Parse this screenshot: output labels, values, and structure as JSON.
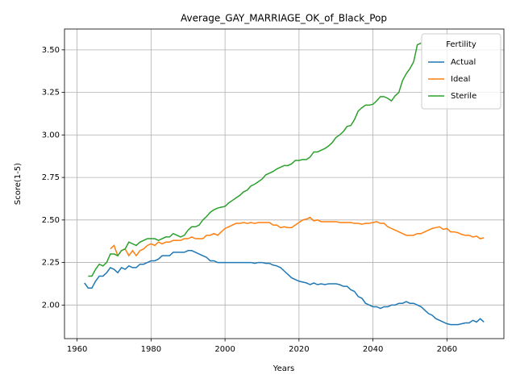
{
  "chart_data": {
    "type": "line",
    "title": "Average_GAY_MARRIAGE_OK_of_Black_Pop",
    "x_label": "Years",
    "y_label": "Score(1-5)",
    "x": [
      1962,
      1963,
      1964,
      1965,
      1966,
      1967,
      1968,
      1969,
      1970,
      1971,
      1972,
      1973,
      1974,
      1975,
      1976,
      1977,
      1978,
      1979,
      1980,
      1981,
      1982,
      1983,
      1984,
      1985,
      1986,
      1987,
      1988,
      1989,
      1990,
      1991,
      1992,
      1993,
      1994,
      1995,
      1996,
      1997,
      1998,
      1999,
      2000,
      2001,
      2002,
      2003,
      2004,
      2005,
      2006,
      2007,
      2008,
      2009,
      2010,
      2011,
      2012,
      2013,
      2014,
      2015,
      2016,
      2017,
      2018,
      2019,
      2020,
      2021,
      2022,
      2023,
      2024,
      2025,
      2026,
      2027,
      2028,
      2029,
      2030,
      2031,
      2032,
      2033,
      2034,
      2035,
      2036,
      2037,
      2038,
      2039,
      2040,
      2041,
      2042,
      2043,
      2044,
      2045,
      2046,
      2047,
      2048,
      2049,
      2050,
      2051,
      2052,
      2053,
      2054,
      2055,
      2056,
      2057,
      2058,
      2059,
      2060,
      2061,
      2062,
      2063,
      2064,
      2065,
      2066,
      2067,
      2068,
      2069,
      2070
    ],
    "series": [
      {
        "name": "Actual",
        "color": "#1f77b4",
        "values": [
          2.13,
          2.1,
          2.1,
          2.14,
          2.17,
          2.17,
          2.19,
          2.22,
          2.21,
          2.19,
          2.22,
          2.21,
          2.23,
          2.22,
          2.22,
          2.24,
          2.24,
          2.25,
          2.26,
          2.26,
          2.27,
          2.29,
          2.29,
          2.29,
          2.31,
          2.31,
          2.31,
          2.31,
          2.32,
          2.32,
          2.31,
          2.3,
          2.29,
          2.28,
          2.26,
          2.26,
          2.25,
          2.25,
          2.25,
          2.25,
          2.25,
          2.25,
          2.25,
          2.25,
          2.25,
          2.25,
          2.245,
          2.25,
          2.25,
          2.245,
          2.245,
          2.235,
          2.23,
          2.22,
          2.2,
          2.18,
          2.16,
          2.15,
          2.14,
          2.135,
          2.13,
          2.12,
          2.13,
          2.12,
          2.125,
          2.12,
          2.125,
          2.125,
          2.125,
          2.12,
          2.11,
          2.11,
          2.09,
          2.08,
          2.05,
          2.04,
          2.01,
          2.0,
          1.99,
          1.99,
          1.98,
          1.99,
          1.99,
          2.0,
          2.0,
          2.01,
          2.01,
          2.02,
          2.01,
          2.01,
          2.0,
          1.99,
          1.97,
          1.95,
          1.94,
          1.92,
          1.91,
          1.9,
          1.89,
          1.885,
          1.885,
          1.885,
          1.89,
          1.895,
          1.895,
          1.91,
          1.9,
          1.92,
          1.9
        ]
      },
      {
        "name": "Ideal",
        "color": "#ff7f0e",
        "values": [
          null,
          null,
          null,
          null,
          null,
          null,
          null,
          2.33,
          2.35,
          2.29,
          2.32,
          2.33,
          2.29,
          2.32,
          2.29,
          2.32,
          2.33,
          2.35,
          2.36,
          2.35,
          2.37,
          2.36,
          2.37,
          2.37,
          2.38,
          2.38,
          2.38,
          2.39,
          2.39,
          2.4,
          2.39,
          2.39,
          2.39,
          2.41,
          2.41,
          2.42,
          2.41,
          2.43,
          2.45,
          2.46,
          2.47,
          2.48,
          2.48,
          2.485,
          2.48,
          2.485,
          2.48,
          2.485,
          2.485,
          2.485,
          2.485,
          2.47,
          2.47,
          2.455,
          2.46,
          2.455,
          2.455,
          2.47,
          2.485,
          2.5,
          2.505,
          2.515,
          2.495,
          2.5,
          2.49,
          2.49,
          2.49,
          2.49,
          2.49,
          2.485,
          2.485,
          2.485,
          2.485,
          2.48,
          2.48,
          2.475,
          2.48,
          2.48,
          2.485,
          2.49,
          2.48,
          2.48,
          2.46,
          2.45,
          2.44,
          2.43,
          2.42,
          2.41,
          2.41,
          2.41,
          2.42,
          2.42,
          2.43,
          2.44,
          2.45,
          2.455,
          2.46,
          2.445,
          2.45,
          2.43,
          2.43,
          2.425,
          2.415,
          2.41,
          2.41,
          2.4,
          2.405,
          2.39,
          2.395
        ]
      },
      {
        "name": "Sterile",
        "color": "#2ca02c",
        "values": [
          null,
          2.17,
          2.17,
          2.21,
          2.24,
          2.23,
          2.25,
          2.3,
          2.3,
          2.29,
          2.32,
          2.33,
          2.37,
          2.36,
          2.35,
          2.37,
          2.38,
          2.39,
          2.39,
          2.39,
          2.38,
          2.39,
          2.4,
          2.4,
          2.42,
          2.41,
          2.4,
          2.41,
          2.44,
          2.46,
          2.46,
          2.47,
          2.5,
          2.52,
          2.545,
          2.56,
          2.57,
          2.575,
          2.58,
          2.6,
          2.615,
          2.63,
          2.645,
          2.665,
          2.675,
          2.7,
          2.71,
          2.725,
          2.74,
          2.765,
          2.775,
          2.785,
          2.8,
          2.81,
          2.82,
          2.82,
          2.83,
          2.85,
          2.85,
          2.855,
          2.855,
          2.87,
          2.9,
          2.9,
          2.91,
          2.92,
          2.935,
          2.955,
          2.985,
          3.0,
          3.02,
          3.05,
          3.055,
          3.09,
          3.14,
          3.16,
          3.175,
          3.175,
          3.18,
          3.2,
          3.225,
          3.225,
          3.215,
          3.2,
          3.23,
          3.25,
          3.32,
          3.36,
          3.39,
          3.43,
          3.53,
          3.54,
          null,
          null,
          null,
          null,
          null,
          null,
          null,
          null,
          null,
          null,
          null,
          null,
          null,
          null,
          null,
          null,
          null
        ]
      }
    ],
    "xlim": [
      1956.6,
      2075.4
    ],
    "ylim": [
      1.8025,
      3.6225
    ],
    "xticks": [
      1960,
      1980,
      2000,
      2020,
      2040,
      2060
    ],
    "yticks": [
      {
        "value": 2,
        "label": "2.00"
      },
      {
        "value": 2.25,
        "label": "2.25"
      },
      {
        "value": 2.5,
        "label": "2.50"
      },
      {
        "value": 2.75,
        "label": "2.75"
      },
      {
        "value": 3,
        "label": "3.00"
      },
      {
        "value": 3.25,
        "label": "3.25"
      },
      {
        "value": 3.5,
        "label": "3.50"
      }
    ],
    "grid": true,
    "legend": {
      "title": "Fertility",
      "position": "upper right"
    }
  }
}
